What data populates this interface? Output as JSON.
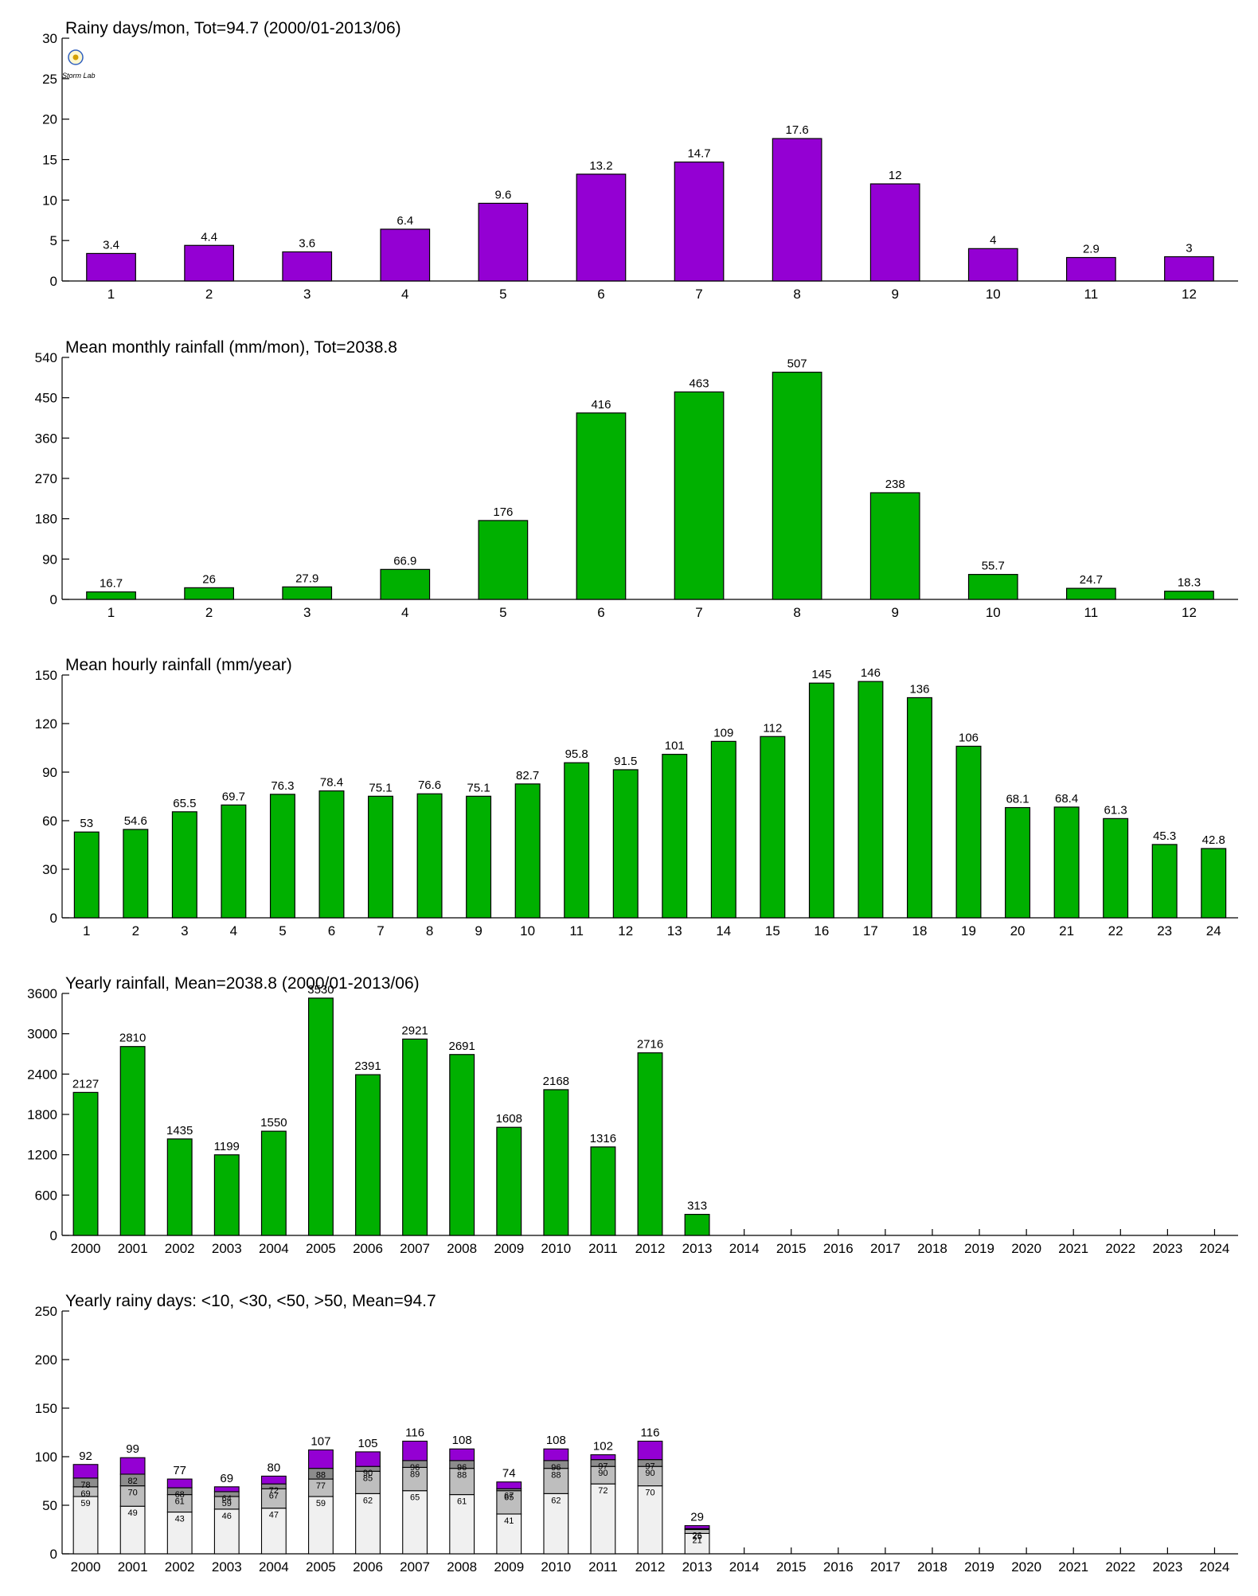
{
  "colors": {
    "purple": "#9400D3",
    "green": "#00B000",
    "stack_lt10": "#F0F0F0",
    "stack_lt30": "#BEBEBE",
    "stack_lt50": "#8C8C8C",
    "stack_gt50": "#9400D3"
  },
  "logo_text": "Storm Lab",
  "chart_data": [
    {
      "id": "rainy-days",
      "type": "bar",
      "title": "Rainy days/mon, Tot=94.7 (2000/01-2013/06)",
      "color": "purple",
      "categories": [
        "1",
        "2",
        "3",
        "4",
        "5",
        "6",
        "7",
        "8",
        "9",
        "10",
        "11",
        "12"
      ],
      "values": [
        3.4,
        4.4,
        3.6,
        6.4,
        9.6,
        13.2,
        14.7,
        17.6,
        12,
        4,
        2.9,
        3
      ],
      "labels": [
        "3.4",
        "4.4",
        "3.6",
        "6.4",
        "9.6",
        "13.2",
        "14.7",
        "17.6",
        "12",
        "4",
        "2.9",
        "3"
      ],
      "ylim": [
        0,
        30
      ],
      "yticks": [
        0,
        5,
        10,
        15,
        20,
        25,
        30
      ]
    },
    {
      "id": "monthly-rainfall",
      "type": "bar",
      "title": "Mean monthly rainfall (mm/mon), Tot=2038.8",
      "color": "green",
      "categories": [
        "1",
        "2",
        "3",
        "4",
        "5",
        "6",
        "7",
        "8",
        "9",
        "10",
        "11",
        "12"
      ],
      "values": [
        16.7,
        26,
        27.9,
        66.9,
        176,
        416,
        463,
        507,
        238,
        55.7,
        24.7,
        18.3
      ],
      "labels": [
        "16.7",
        "26",
        "27.9",
        "66.9",
        "176",
        "416",
        "463",
        "507",
        "238",
        "55.7",
        "24.7",
        "18.3"
      ],
      "ylim": [
        0,
        540
      ],
      "yticks": [
        0,
        90,
        180,
        270,
        360,
        450,
        540
      ]
    },
    {
      "id": "hourly-rainfall",
      "type": "bar",
      "title": "Mean hourly rainfall (mm/year)",
      "color": "green",
      "categories": [
        "1",
        "2",
        "3",
        "4",
        "5",
        "6",
        "7",
        "8",
        "9",
        "10",
        "11",
        "12",
        "13",
        "14",
        "15",
        "16",
        "17",
        "18",
        "19",
        "20",
        "21",
        "22",
        "23",
        "24"
      ],
      "values": [
        53,
        54.6,
        65.5,
        69.7,
        76.3,
        78.4,
        75.1,
        76.6,
        75.1,
        82.7,
        95.8,
        91.5,
        101,
        109,
        112,
        145,
        146,
        136,
        106,
        68.1,
        68.4,
        61.3,
        45.3,
        42.8
      ],
      "labels": [
        "53",
        "54.6",
        "65.5",
        "69.7",
        "76.3",
        "78.4",
        "75.1",
        "76.6",
        "75.1",
        "82.7",
        "95.8",
        "91.5",
        "101",
        "109",
        "112",
        "145",
        "146",
        "136",
        "106",
        "68.1",
        "68.4",
        "61.3",
        "45.3",
        "42.8"
      ],
      "ylim": [
        0,
        150
      ],
      "yticks": [
        0,
        30,
        60,
        90,
        120,
        150
      ]
    },
    {
      "id": "yearly-rainfall",
      "type": "bar",
      "title": "Yearly rainfall, Mean=2038.8  (2000/01-2013/06)",
      "color": "green",
      "categories": [
        "2000",
        "2001",
        "2002",
        "2003",
        "2004",
        "2005",
        "2006",
        "2007",
        "2008",
        "2009",
        "2010",
        "2011",
        "2012",
        "2013",
        "2014",
        "2015",
        "2016",
        "2017",
        "2018",
        "2019",
        "2020",
        "2021",
        "2022",
        "2023",
        "2024"
      ],
      "values": [
        2127,
        2810,
        1435,
        1199,
        1550,
        3530,
        2391,
        2921,
        2691,
        1608,
        2168,
        1316,
        2716,
        313,
        null,
        null,
        null,
        null,
        null,
        null,
        null,
        null,
        null,
        null,
        null
      ],
      "labels": [
        "2127",
        "2810",
        "1435",
        "1199",
        "1550",
        "3530",
        "2391",
        "2921",
        "2691",
        "1608",
        "2168",
        "1316",
        "2716",
        "313",
        "",
        "",
        "",
        "",
        "",
        "",
        "",
        "",
        "",
        "",
        ""
      ],
      "ylim": [
        0,
        3600
      ],
      "yticks": [
        0,
        600,
        1200,
        1800,
        2400,
        3000,
        3600
      ]
    },
    {
      "id": "yearly-rainy-days",
      "type": "bar",
      "stacked": true,
      "title": "Yearly rainy days: <10, <30, <50, >50, Mean=94.7",
      "categories": [
        "2000",
        "2001",
        "2002",
        "2003",
        "2004",
        "2005",
        "2006",
        "2007",
        "2008",
        "2009",
        "2010",
        "2011",
        "2012",
        "2013",
        "2014",
        "2015",
        "2016",
        "2017",
        "2018",
        "2019",
        "2020",
        "2021",
        "2022",
        "2023",
        "2024"
      ],
      "ylim": [
        0,
        250
      ],
      "yticks": [
        0,
        50,
        100,
        150,
        200,
        250
      ],
      "stack_colors": [
        "stack_lt10",
        "stack_lt30",
        "stack_lt50",
        "stack_gt50"
      ],
      "cumulative": {
        "lt10": [
          59,
          49,
          43,
          46,
          47,
          59,
          62,
          65,
          61,
          41,
          62,
          72,
          70,
          21,
          null,
          null,
          null,
          null,
          null,
          null,
          null,
          null,
          null,
          null,
          null
        ],
        "lt30": [
          69,
          70,
          61,
          59,
          67,
          77,
          85,
          89,
          88,
          65,
          88,
          90,
          90,
          25,
          null,
          null,
          null,
          null,
          null,
          null,
          null,
          null,
          null,
          null,
          null
        ],
        "lt50": [
          78,
          82,
          68,
          64,
          72,
          88,
          90,
          96,
          96,
          67,
          96,
          97,
          97,
          26,
          null,
          null,
          null,
          null,
          null,
          null,
          null,
          null,
          null,
          null,
          null
        ],
        "total": [
          92,
          99,
          77,
          69,
          80,
          107,
          105,
          116,
          108,
          74,
          108,
          102,
          116,
          29,
          null,
          null,
          null,
          null,
          null,
          null,
          null,
          null,
          null,
          null,
          null
        ]
      },
      "segment_labels": {
        "lt10": [
          "59",
          "49",
          "43",
          "46",
          "47",
          "59",
          "62",
          "65",
          "61",
          "41",
          "62",
          "72",
          "70",
          "21",
          "",
          "",
          "",
          "",
          "",
          "",
          "",
          "",
          "",
          "",
          ""
        ],
        "lt30": [
          "69",
          "70",
          "61",
          "59",
          "67",
          "77",
          "85",
          "89",
          "88",
          "65",
          "88",
          "90",
          "90",
          "25",
          "",
          "",
          "",
          "",
          "",
          "",
          "",
          "",
          "",
          "",
          ""
        ],
        "lt50": [
          "78",
          "82",
          "68",
          "64",
          "72",
          "88",
          "90",
          "96",
          "96",
          "67",
          "96",
          "97",
          "97",
          "26",
          "",
          "",
          "",
          "",
          "",
          "",
          "",
          "",
          "",
          "",
          ""
        ]
      },
      "total_labels": [
        "92",
        "99",
        "77",
        "69",
        "80",
        "107",
        "105",
        "116",
        "108",
        "74",
        "108",
        "102",
        "116",
        "29",
        "",
        "",
        "",
        "",
        "",
        "",
        "",
        "",
        "",
        "",
        ""
      ]
    }
  ]
}
